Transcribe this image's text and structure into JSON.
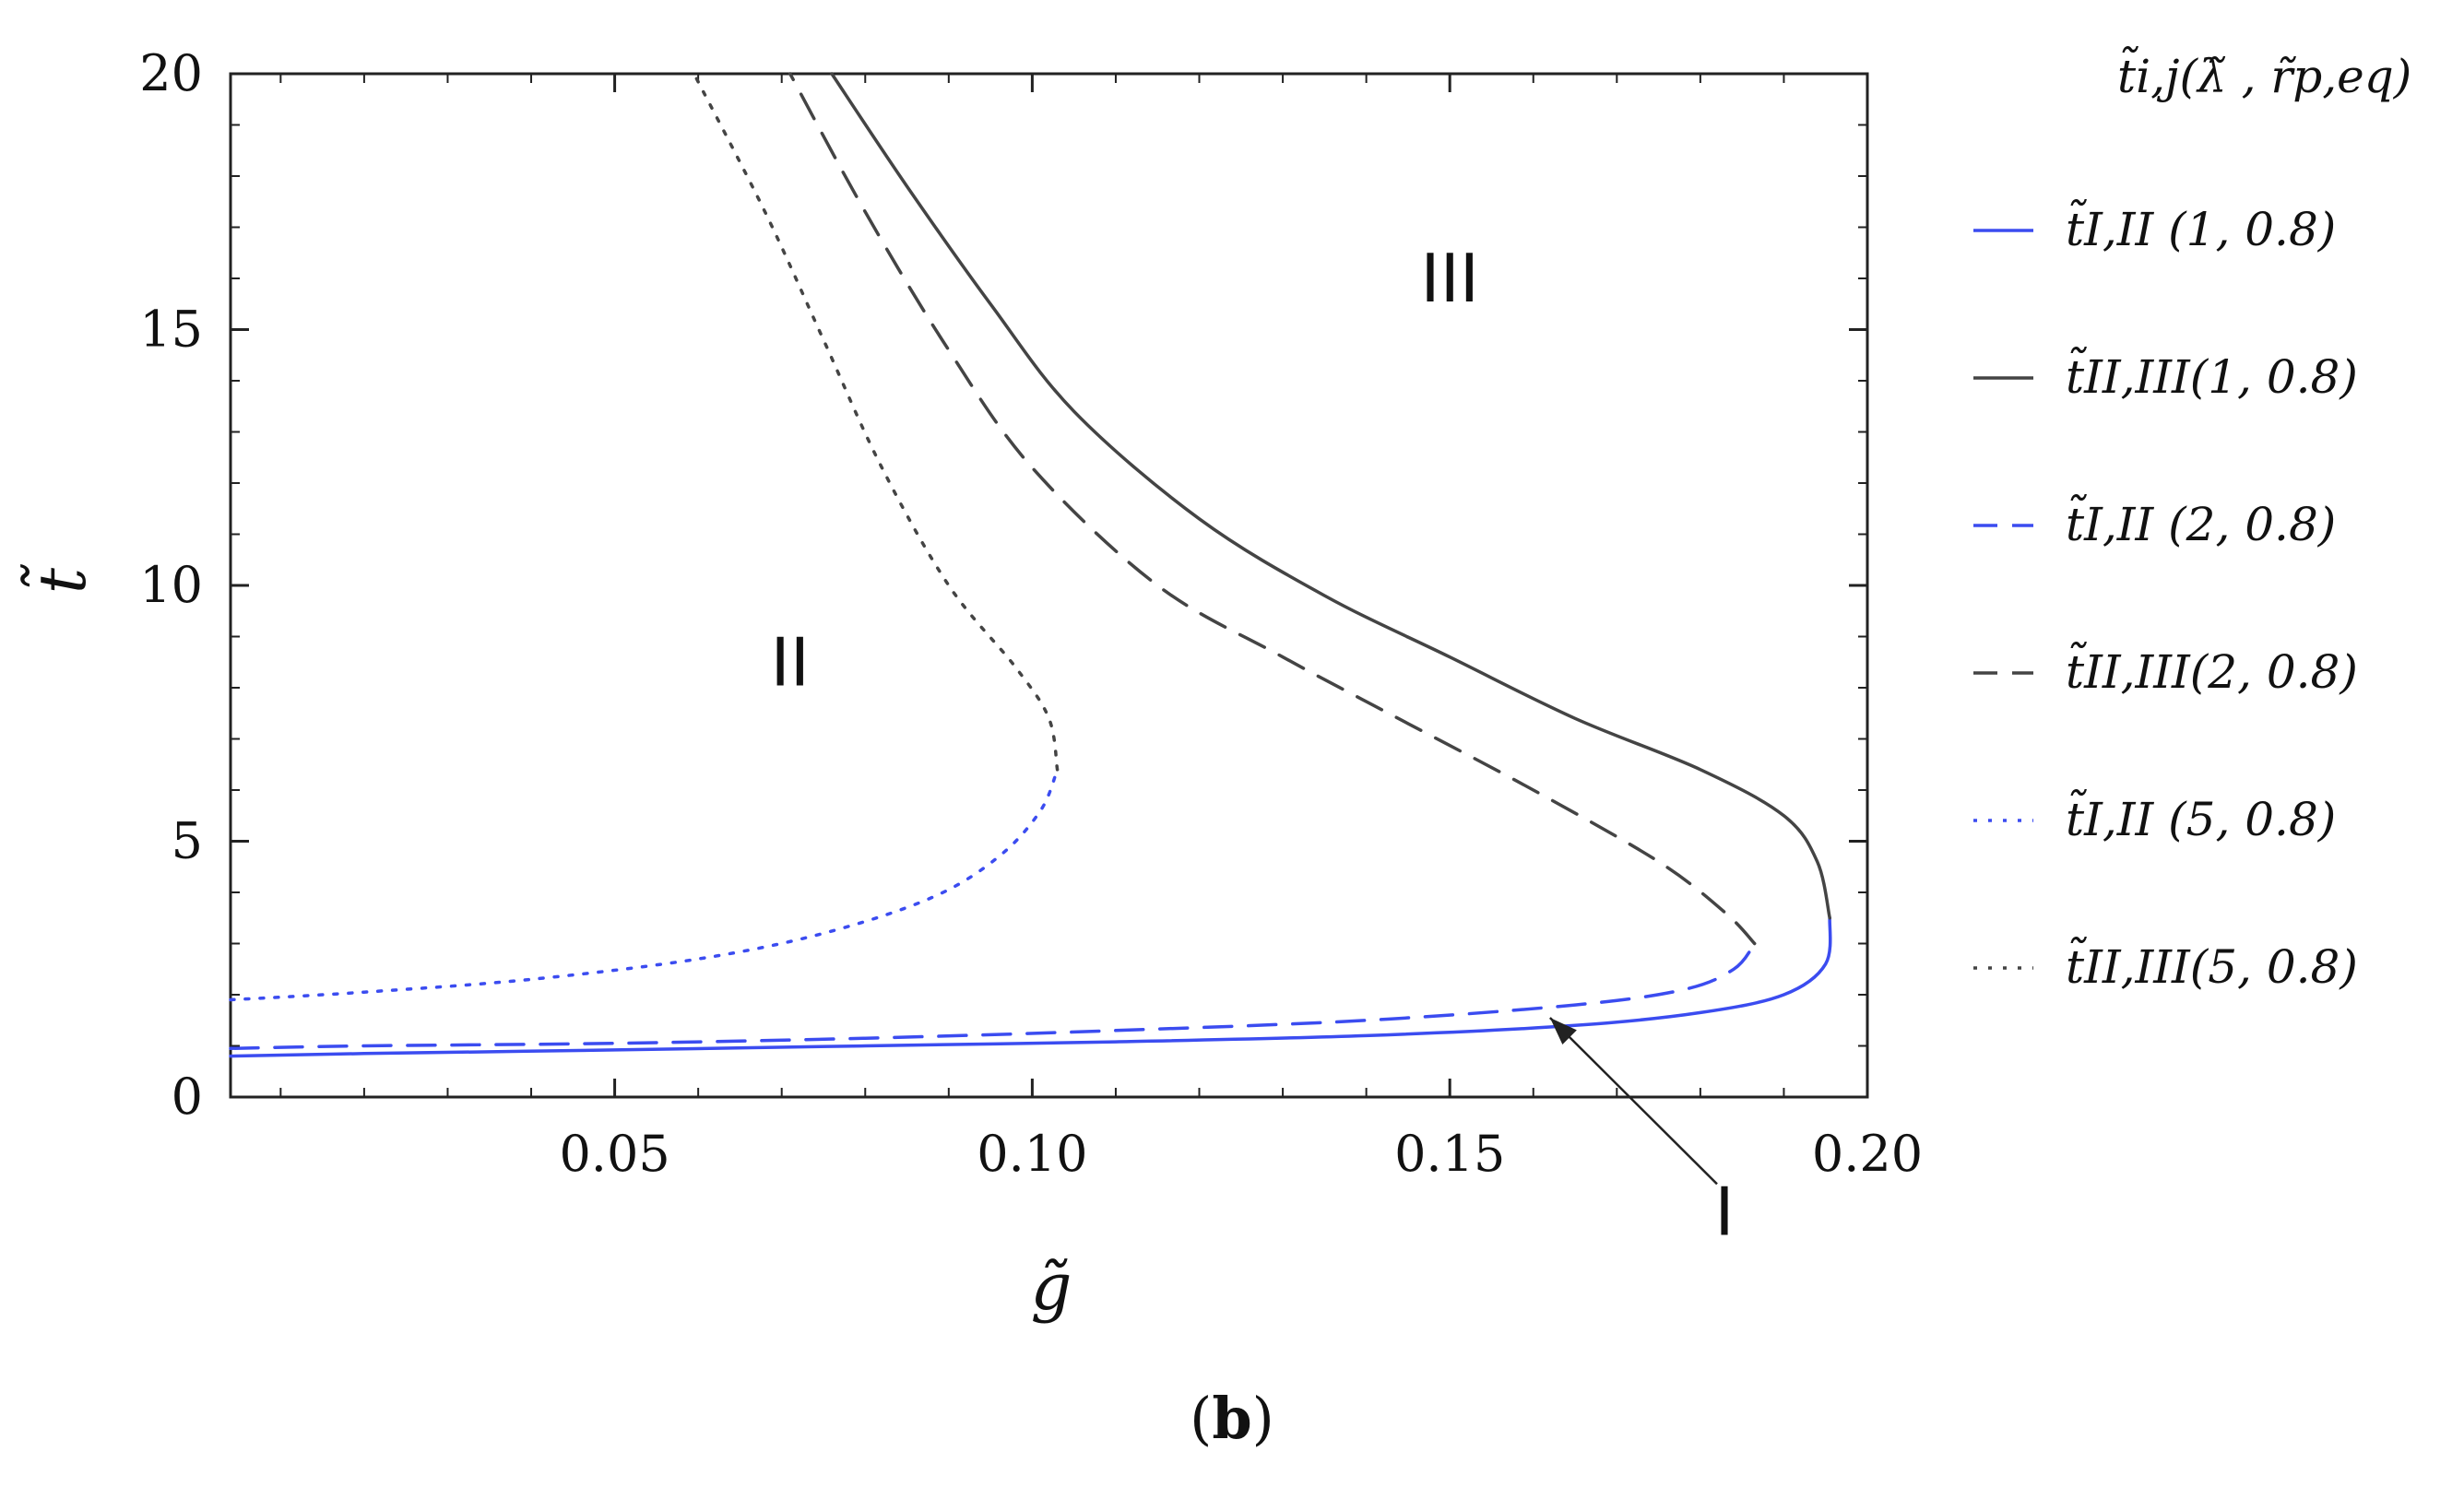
{
  "caption": {
    "open": "(",
    "letter": "b",
    "close": ")"
  },
  "chart_data": {
    "type": "line",
    "xlabel": "g̃",
    "ylabel": "t̃",
    "xlim": [
      0.004,
      0.2
    ],
    "ylim": [
      0,
      20
    ],
    "x_ticks": [
      0.05,
      0.1,
      0.15,
      0.2
    ],
    "x_tick_labels": [
      "0.05",
      "0.10",
      "0.15",
      "0.20"
    ],
    "y_ticks": [
      0,
      5,
      10,
      15,
      20
    ],
    "y_tick_labels": [
      "0",
      "5",
      "10",
      "15",
      "20"
    ],
    "grid": false,
    "legend_position": "right-outside",
    "legend_title": "t̃i,j(λ̃ , r̃p,eq)",
    "region_labels": [
      {
        "text": "II",
        "x": 0.071,
        "y": 8.5
      },
      {
        "text": "III",
        "x": 0.15,
        "y": 16
      }
    ],
    "annotation": {
      "text": "I",
      "from": [
        0.182,
        -1.7
      ],
      "to": [
        0.162,
        1.55
      ]
    },
    "series": [
      {
        "name": "t̃I,II (1, 0.8)",
        "color": "#3b4cf0",
        "dash": "solid",
        "points": [
          [
            0.004,
            0.8
          ],
          [
            0.02,
            0.85
          ],
          [
            0.05,
            0.92
          ],
          [
            0.08,
            1.0
          ],
          [
            0.11,
            1.08
          ],
          [
            0.14,
            1.2
          ],
          [
            0.165,
            1.4
          ],
          [
            0.18,
            1.65
          ],
          [
            0.19,
            2.0
          ],
          [
            0.195,
            2.6
          ],
          [
            0.1955,
            3.5
          ]
        ]
      },
      {
        "name": "t̃II,III(1, 0.8)",
        "color": "#444444",
        "dash": "solid",
        "points": [
          [
            0.1955,
            3.5
          ],
          [
            0.194,
            4.6
          ],
          [
            0.19,
            5.5
          ],
          [
            0.18,
            6.4
          ],
          [
            0.165,
            7.4
          ],
          [
            0.15,
            8.6
          ],
          [
            0.135,
            9.8
          ],
          [
            0.12,
            11.3
          ],
          [
            0.105,
            13.4
          ],
          [
            0.095,
            15.5
          ],
          [
            0.085,
            17.8
          ],
          [
            0.076,
            20.0
          ]
        ]
      },
      {
        "name": "t̃I,II (2, 0.8)",
        "color": "#3b4cf0",
        "dash": "long",
        "points": [
          [
            0.004,
            0.95
          ],
          [
            0.02,
            1.0
          ],
          [
            0.05,
            1.05
          ],
          [
            0.08,
            1.15
          ],
          [
            0.11,
            1.3
          ],
          [
            0.14,
            1.5
          ],
          [
            0.165,
            1.8
          ],
          [
            0.178,
            2.1
          ],
          [
            0.184,
            2.5
          ],
          [
            0.1865,
            3.0
          ]
        ]
      },
      {
        "name": "t̃II,III(2, 0.8)",
        "color": "#444444",
        "dash": "long",
        "points": [
          [
            0.1865,
            3.0
          ],
          [
            0.183,
            3.6
          ],
          [
            0.175,
            4.6
          ],
          [
            0.16,
            6.0
          ],
          [
            0.145,
            7.3
          ],
          [
            0.13,
            8.6
          ],
          [
            0.115,
            10.0
          ],
          [
            0.1,
            12.3
          ],
          [
            0.09,
            14.6
          ],
          [
            0.08,
            17.3
          ],
          [
            0.071,
            20.0
          ]
        ]
      },
      {
        "name": "t̃I,II (5, 0.8)",
        "color": "#3b4cf0",
        "dash": "dot",
        "points": [
          [
            0.004,
            1.9
          ],
          [
            0.02,
            2.05
          ],
          [
            0.04,
            2.3
          ],
          [
            0.06,
            2.7
          ],
          [
            0.075,
            3.2
          ],
          [
            0.088,
            3.9
          ],
          [
            0.096,
            4.7
          ],
          [
            0.101,
            5.6
          ],
          [
            0.103,
            6.4
          ]
        ]
      },
      {
        "name": "t̃II,III(5, 0.8)",
        "color": "#444444",
        "dash": "dot",
        "points": [
          [
            0.103,
            6.4
          ],
          [
            0.102,
            7.4
          ],
          [
            0.098,
            8.4
          ],
          [
            0.09,
            10.0
          ],
          [
            0.082,
            12.3
          ],
          [
            0.075,
            14.8
          ],
          [
            0.068,
            17.3
          ],
          [
            0.0595,
            20.0
          ]
        ]
      }
    ]
  }
}
